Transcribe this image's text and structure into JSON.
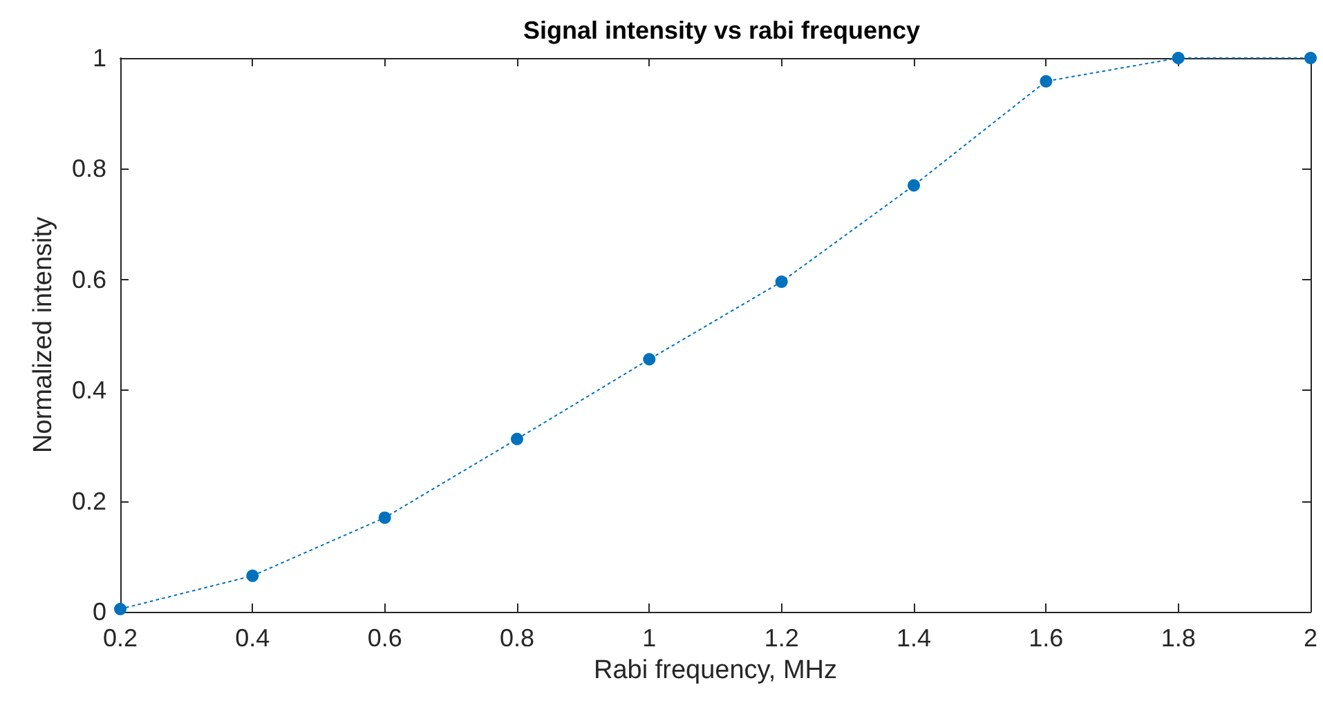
{
  "chart_data": {
    "type": "line",
    "title": "Signal intensity vs rabi frequency",
    "xlabel": "Rabi frequency, MHz",
    "ylabel": "Normalized intensity",
    "x": [
      0.2,
      0.4,
      0.6,
      0.8,
      1.0,
      1.2,
      1.4,
      1.6,
      1.8,
      2.0
    ],
    "series": [
      {
        "color": "#0072bd",
        "values": [
          0.005,
          0.065,
          0.17,
          0.312,
          0.456,
          0.596,
          0.77,
          0.958,
          1.0,
          1.0
        ]
      }
    ],
    "xlim": [
      0.2,
      2
    ],
    "xticks": [
      0.2,
      0.4,
      0.6,
      0.8,
      1,
      1.2,
      1.4,
      1.6,
      1.8,
      2
    ],
    "ylim": [
      0,
      1
    ],
    "yticks": [
      0,
      0.2,
      0.4,
      0.6,
      0.8,
      1
    ],
    "grid": false,
    "marker": "circle",
    "line_style": "dotted"
  }
}
